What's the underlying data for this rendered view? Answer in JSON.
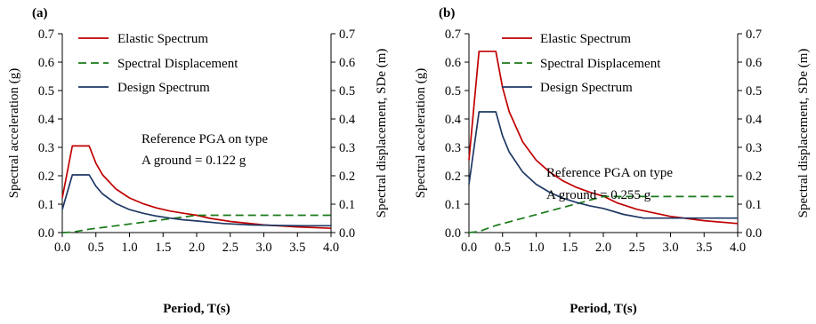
{
  "chart_data": [
    {
      "type": "line",
      "panel_label": "(a)",
      "xlabel": "Period, T(s)",
      "ylabel": "Spectral acceleration (g)",
      "y2label": "Spectral displacement, SDe (m)",
      "xlim": [
        0.0,
        4.0
      ],
      "ylim": [
        0.0,
        0.7
      ],
      "y2lim": [
        0.0,
        0.7
      ],
      "xticks": [
        "0.0",
        "0.5",
        "1.0",
        "1.5",
        "2.0",
        "2.5",
        "3.0",
        "3.5",
        "4.0"
      ],
      "yticks": [
        "0.0",
        "0.1",
        "0.2",
        "0.3",
        "0.4",
        "0.5",
        "0.6",
        "0.7"
      ],
      "y2ticks": [
        "0.0",
        "0.1",
        "0.2",
        "0.3",
        "0.4",
        "0.5",
        "0.6",
        "0.7"
      ],
      "grid": false,
      "legend_position": "top-center",
      "annotation": [
        "Reference PGA on type",
        "A ground = 0.122 g"
      ],
      "series": [
        {
          "name": "Elastic Spectrum",
          "color": "#c00000",
          "dash": "solid",
          "axis": "left",
          "x": [
            0.0,
            0.15,
            0.4,
            0.5,
            0.6,
            0.8,
            1.0,
            1.2,
            1.4,
            1.6,
            1.8,
            2.0,
            2.2,
            2.5,
            3.0,
            3.5,
            4.0
          ],
          "y": [
            0.122,
            0.305,
            0.305,
            0.244,
            0.203,
            0.153,
            0.122,
            0.102,
            0.087,
            0.076,
            0.068,
            0.061,
            0.05,
            0.039,
            0.027,
            0.02,
            0.015
          ]
        },
        {
          "name": "Spectral Displacement",
          "color": "#1a7a1a",
          "dash": "dashed",
          "axis": "right",
          "x": [
            0.0,
            0.15,
            0.4,
            1.0,
            2.0,
            4.0
          ],
          "y": [
            0.0,
            0.0017,
            0.012,
            0.03,
            0.061,
            0.061
          ]
        },
        {
          "name": "Design Spectrum",
          "color": "#1f3864",
          "dash": "solid",
          "axis": "left",
          "x": [
            0.0,
            0.15,
            0.4,
            0.5,
            0.6,
            0.8,
            1.0,
            1.2,
            1.4,
            1.6,
            1.8,
            2.0,
            2.4,
            2.8,
            3.2,
            3.6,
            4.0
          ],
          "y": [
            0.081,
            0.203,
            0.203,
            0.163,
            0.136,
            0.102,
            0.081,
            0.068,
            0.058,
            0.051,
            0.045,
            0.041,
            0.032,
            0.027,
            0.025,
            0.024,
            0.024
          ]
        }
      ]
    },
    {
      "type": "line",
      "panel_label": "(b)",
      "xlabel": "Period, T(s)",
      "ylabel": "Spectral acceleration (g)",
      "y2label": "Spectral displacement, SDe (m)",
      "xlim": [
        0.0,
        4.0
      ],
      "ylim": [
        0.0,
        0.7
      ],
      "y2lim": [
        0.0,
        0.7
      ],
      "xticks": [
        "0.0",
        "0.5",
        "1.0",
        "1.5",
        "2.0",
        "2.5",
        "3.0",
        "3.5",
        "4.0"
      ],
      "yticks": [
        "0.0",
        "0.1",
        "0.2",
        "0.3",
        "0.4",
        "0.5",
        "0.6",
        "0.7"
      ],
      "y2ticks": [
        "0.0",
        "0.1",
        "0.2",
        "0.3",
        "0.4",
        "0.5",
        "0.6",
        "0.7"
      ],
      "grid": false,
      "legend_position": "top-center",
      "annotation": [
        "Reference PGA on type",
        "A ground = 0.255 g"
      ],
      "series": [
        {
          "name": "Elastic Spectrum",
          "color": "#c00000",
          "dash": "solid",
          "axis": "left",
          "x": [
            0.0,
            0.15,
            0.4,
            0.5,
            0.6,
            0.8,
            1.0,
            1.2,
            1.4,
            1.6,
            1.8,
            2.0,
            2.2,
            2.5,
            3.0,
            3.5,
            4.0
          ],
          "y": [
            0.255,
            0.638,
            0.638,
            0.51,
            0.425,
            0.319,
            0.255,
            0.213,
            0.182,
            0.159,
            0.142,
            0.128,
            0.105,
            0.082,
            0.057,
            0.042,
            0.032
          ]
        },
        {
          "name": "Spectral Displacement",
          "color": "#1a7a1a",
          "dash": "dashed",
          "axis": "right",
          "x": [
            0.0,
            0.15,
            0.4,
            1.0,
            2.0,
            4.0
          ],
          "y": [
            0.0,
            0.0036,
            0.025,
            0.063,
            0.127,
            0.127
          ]
        },
        {
          "name": "Design Spectrum",
          "color": "#1f3864",
          "dash": "solid",
          "axis": "left",
          "x": [
            0.0,
            0.15,
            0.4,
            0.5,
            0.6,
            0.8,
            1.0,
            1.2,
            1.4,
            1.6,
            1.8,
            2.0,
            2.3,
            2.6,
            3.0,
            3.5,
            4.0
          ],
          "y": [
            0.17,
            0.425,
            0.425,
            0.34,
            0.283,
            0.213,
            0.17,
            0.142,
            0.121,
            0.106,
            0.094,
            0.085,
            0.064,
            0.051,
            0.051,
            0.051,
            0.051
          ]
        }
      ]
    }
  ]
}
